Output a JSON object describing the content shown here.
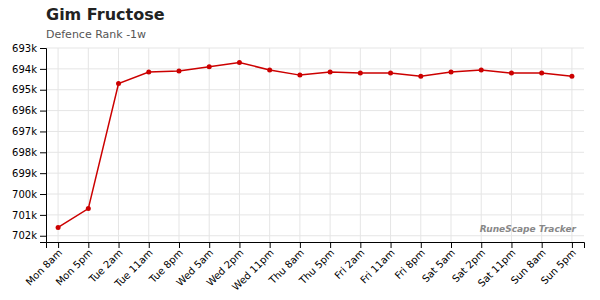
{
  "chart_data": {
    "type": "line",
    "title": "Gim Fructose",
    "subtitle": "Defence Rank -1w",
    "categories": [
      "Mon 8am",
      "Mon 5pm",
      "Tue 2am",
      "Tue 11am",
      "Tue 8pm",
      "Wed 5am",
      "Wed 2pm",
      "Wed 11pm",
      "Thu 8am",
      "Thu 5pm",
      "Fri 2am",
      "Fri 11am",
      "Fri 8pm",
      "Sat 5am",
      "Sat 2pm",
      "Sat 11pm",
      "Sun 8am",
      "Sun 5pm"
    ],
    "values": [
      701600,
      700700,
      694700,
      694150,
      694100,
      693900,
      693700,
      694050,
      694300,
      694150,
      694200,
      694200,
      694350,
      694150,
      694050,
      694200,
      694200,
      694350
    ],
    "color": "#cc0000",
    "marker": "circle",
    "ylim": [
      702300,
      693000
    ],
    "yticks": [
      {
        "value": 693000,
        "label": "693k"
      },
      {
        "value": 694000,
        "label": "694k"
      },
      {
        "value": 695000,
        "label": "695k"
      },
      {
        "value": 696000,
        "label": "696k"
      },
      {
        "value": 697000,
        "label": "697k"
      },
      {
        "value": 698000,
        "label": "698k"
      },
      {
        "value": 699000,
        "label": "699k"
      },
      {
        "value": 700000,
        "label": "700k"
      },
      {
        "value": 701000,
        "label": "701k"
      },
      {
        "value": 702000,
        "label": "702k"
      }
    ],
    "grid": true,
    "annotations": [
      "RuneScape Tracker"
    ]
  }
}
